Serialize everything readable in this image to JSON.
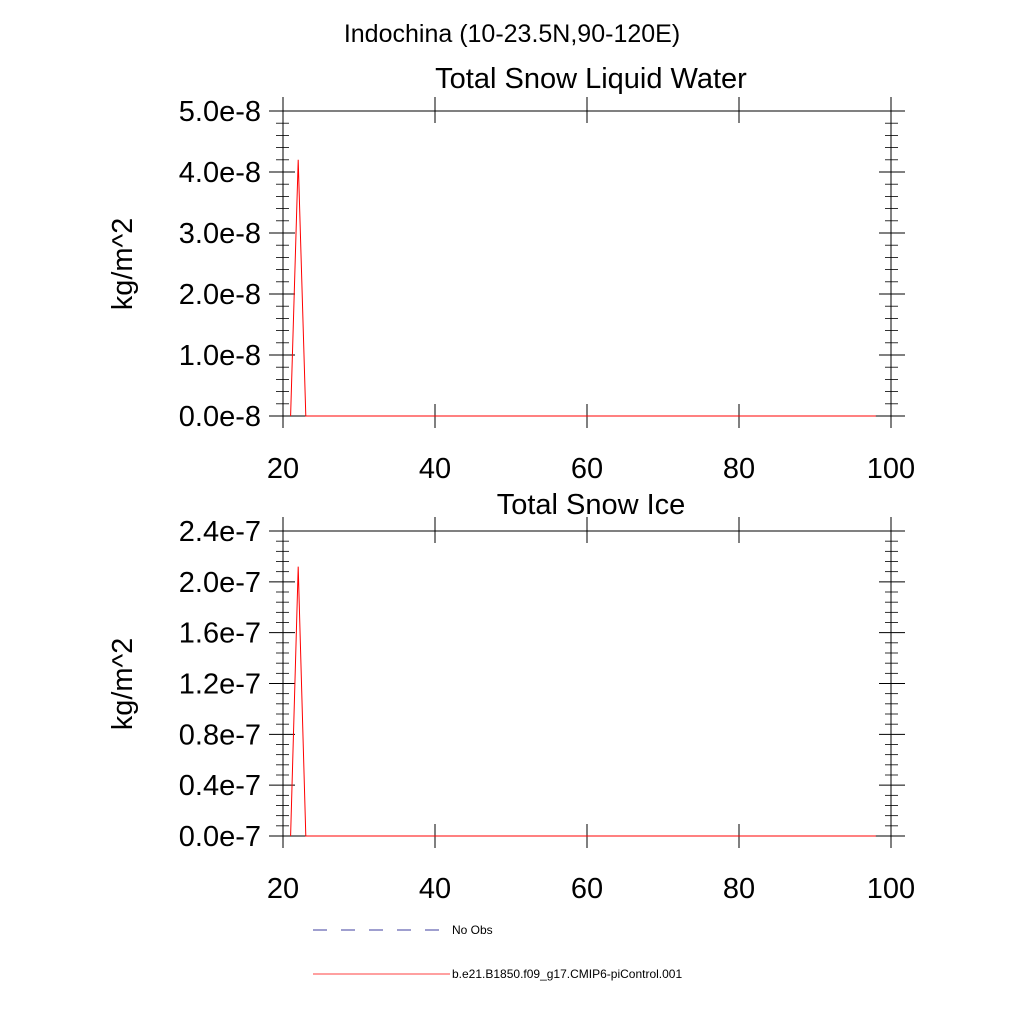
{
  "page_title": "Indochina (10-23.5N,90-120E)",
  "colors": {
    "frame": "#000000",
    "model_line": "#ff0000",
    "obs_line": "#000080"
  },
  "legend": {
    "obs_label": "No Obs",
    "model_label": "b.e21.B1850.f09_g17.CMIP6-piControl.001"
  },
  "chart_data": [
    {
      "type": "line",
      "title": "Total Snow Liquid Water",
      "xlabel": "",
      "ylabel": "kg/m^2",
      "xlim": [
        20,
        100
      ],
      "ylim": [
        0,
        5e-08
      ],
      "grid": false,
      "x_ticks": [
        20,
        40,
        60,
        80,
        100
      ],
      "x_tick_labels": [
        "20",
        "40",
        "60",
        "80",
        "100"
      ],
      "y_ticks": [
        0,
        1e-08,
        2e-08,
        3e-08,
        4e-08,
        5e-08
      ],
      "y_tick_labels": [
        "0.0e-8",
        "1.0e-8",
        "2.0e-8",
        "3.0e-8",
        "4.0e-8",
        "5.0e-8"
      ],
      "series": [
        {
          "name": "b.e21.B1850.f09_g17.CMIP6-piControl.001",
          "color": "#ff0000",
          "x": [
            21,
            22,
            23,
            98
          ],
          "y": [
            0,
            4.2e-08,
            0,
            0
          ]
        }
      ]
    },
    {
      "type": "line",
      "title": "Total Snow Ice",
      "xlabel": "",
      "ylabel": "kg/m^2",
      "xlim": [
        20,
        100
      ],
      "ylim": [
        0,
        2.4e-07
      ],
      "grid": false,
      "x_ticks": [
        20,
        40,
        60,
        80,
        100
      ],
      "x_tick_labels": [
        "20",
        "40",
        "60",
        "80",
        "100"
      ],
      "y_ticks": [
        0,
        4e-08,
        8e-08,
        1.2e-07,
        1.6e-07,
        2e-07,
        2.4e-07
      ],
      "y_tick_labels": [
        "0.0e-7",
        "0.4e-7",
        "0.8e-7",
        "1.2e-7",
        "1.6e-7",
        "2.0e-7",
        "2.4e-7"
      ],
      "series": [
        {
          "name": "b.e21.B1850.f09_g17.CMIP6-piControl.001",
          "color": "#ff0000",
          "x": [
            21,
            22,
            23,
            98
          ],
          "y": [
            0,
            2.12e-07,
            0,
            0
          ]
        }
      ]
    }
  ]
}
